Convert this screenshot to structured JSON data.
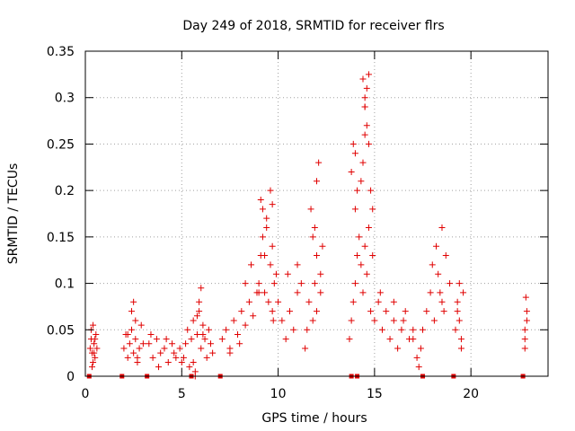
{
  "chart_data": {
    "type": "scatter",
    "title": "Day 249 of 2018, SRMTID for receiver flrs",
    "xlabel": "GPS time / hours",
    "ylabel": "SRMTID / TECUs",
    "xlim": [
      0,
      24
    ],
    "ylim": [
      0,
      0.35
    ],
    "xticks": [
      0,
      5,
      10,
      15,
      20
    ],
    "xtick_labels": [
      "0",
      "5",
      "10",
      "15",
      "20"
    ],
    "yticks": [
      0,
      0.05,
      0.1,
      0.15,
      0.2,
      0.25,
      0.3,
      0.35
    ],
    "ytick_labels": [
      "0",
      "0.05",
      "0.1",
      "0.15",
      "0.2",
      "0.25",
      "0.3",
      "0.35"
    ],
    "grid": true,
    "marker": "+",
    "color": "#e00000",
    "zero_marks_x": [
      0.2,
      1.9,
      3.2,
      5.5,
      7.0,
      13.8,
      14.1,
      17.5,
      19.1,
      22.7
    ],
    "series": [
      {
        "name": "flrs",
        "x": [
          0.25,
          0.3,
          0.35,
          0.4,
          0.45,
          0.5,
          0.55,
          0.6,
          0.3,
          0.4,
          0.5,
          0.35,
          0.45,
          2.0,
          2.1,
          2.2,
          2.3,
          2.4,
          2.5,
          2.6,
          2.7,
          2.8,
          2.9,
          3.0,
          2.5,
          2.6,
          2.4,
          2.2,
          2.7,
          3.3,
          3.5,
          3.7,
          3.9,
          4.1,
          4.3,
          4.5,
          4.7,
          4.9,
          3.4,
          3.8,
          4.2,
          4.6,
          5.0,
          5.1,
          5.2,
          5.3,
          5.4,
          5.5,
          5.6,
          5.7,
          5.8,
          5.9,
          6.0,
          6.1,
          6.2,
          6.3,
          6.4,
          6.5,
          6.6,
          5.9,
          6.0,
          5.6,
          5.7,
          5.8,
          6.1,
          7.1,
          7.3,
          7.5,
          7.7,
          7.9,
          8.1,
          8.3,
          8.5,
          8.7,
          8.9,
          7.5,
          8.0,
          8.3,
          8.6,
          9.0,
          9.1,
          9.2,
          9.3,
          9.4,
          9.5,
          9.6,
          9.7,
          9.8,
          9.9,
          9.1,
          9.2,
          9.4,
          9.6,
          9.7,
          9.7,
          9.75,
          9.3,
          9.0,
          10.0,
          10.2,
          10.4,
          10.6,
          10.8,
          11.0,
          11.2,
          11.4,
          11.6,
          11.8,
          12.0,
          12.2,
          10.5,
          11.0,
          11.5,
          11.8,
          11.9,
          12.0,
          12.1,
          11.7,
          12.0,
          12.2,
          12.3,
          11.9,
          13.7,
          13.8,
          13.9,
          14.0,
          14.1,
          14.2,
          14.3,
          14.4,
          14.5,
          14.6,
          14.7,
          14.8,
          14.9,
          13.8,
          13.9,
          14.0,
          14.0,
          14.1,
          14.3,
          14.4,
          14.5,
          14.5,
          14.6,
          14.6,
          14.7,
          14.7,
          14.8,
          14.9,
          14.5,
          14.4,
          14.5,
          15.0,
          15.2,
          15.4,
          15.6,
          15.8,
          16.0,
          16.2,
          16.4,
          16.6,
          16.8,
          17.0,
          17.2,
          17.4,
          15.3,
          16.0,
          16.5,
          17.0,
          17.3,
          17.5,
          17.7,
          17.9,
          18.1,
          18.3,
          18.5,
          18.7,
          18.9,
          18.0,
          18.2,
          18.4,
          18.5,
          18.6,
          19.2,
          19.3,
          19.4,
          19.5,
          19.6,
          19.3,
          19.5,
          19.4,
          22.8,
          22.8,
          22.9,
          22.9,
          22.85,
          22.8
        ],
        "y": [
          0.03,
          0.04,
          0.025,
          0.055,
          0.035,
          0.02,
          0.045,
          0.03,
          0.05,
          0.015,
          0.04,
          0.01,
          0.025,
          0.03,
          0.045,
          0.02,
          0.035,
          0.05,
          0.025,
          0.04,
          0.015,
          0.03,
          0.055,
          0.035,
          0.08,
          0.06,
          0.07,
          0.045,
          0.02,
          0.035,
          0.02,
          0.04,
          0.025,
          0.03,
          0.015,
          0.035,
          0.02,
          0.03,
          0.045,
          0.01,
          0.04,
          0.025,
          0.015,
          0.02,
          0.035,
          0.05,
          0.01,
          0.04,
          0.06,
          0.005,
          0.045,
          0.07,
          0.03,
          0.055,
          0.04,
          0.02,
          0.05,
          0.035,
          0.025,
          0.08,
          0.095,
          0.015,
          0.0,
          0.065,
          0.045,
          0.04,
          0.05,
          0.03,
          0.06,
          0.045,
          0.07,
          0.055,
          0.08,
          0.065,
          0.09,
          0.025,
          0.035,
          0.1,
          0.12,
          0.1,
          0.13,
          0.15,
          0.09,
          0.17,
          0.08,
          0.12,
          0.14,
          0.1,
          0.11,
          0.19,
          0.18,
          0.16,
          0.2,
          0.185,
          0.07,
          0.06,
          0.13,
          0.09,
          0.08,
          0.06,
          0.04,
          0.07,
          0.05,
          0.09,
          0.1,
          0.03,
          0.08,
          0.06,
          0.07,
          0.09,
          0.11,
          0.12,
          0.05,
          0.15,
          0.16,
          0.21,
          0.23,
          0.18,
          0.13,
          0.11,
          0.14,
          0.1,
          0.04,
          0.06,
          0.08,
          0.1,
          0.13,
          0.15,
          0.12,
          0.09,
          0.14,
          0.11,
          0.16,
          0.07,
          0.13,
          0.22,
          0.25,
          0.24,
          0.18,
          0.2,
          0.21,
          0.23,
          0.26,
          0.29,
          0.31,
          0.27,
          0.325,
          0.25,
          0.2,
          0.18,
          0.3,
          0.32,
          0.29,
          0.06,
          0.08,
          0.05,
          0.07,
          0.04,
          0.06,
          0.03,
          0.05,
          0.07,
          0.04,
          0.05,
          0.02,
          0.03,
          0.09,
          0.08,
          0.06,
          0.04,
          0.01,
          0.05,
          0.07,
          0.09,
          0.06,
          0.11,
          0.08,
          0.13,
          0.1,
          0.12,
          0.14,
          0.09,
          0.16,
          0.07,
          0.05,
          0.08,
          0.06,
          0.04,
          0.09,
          0.07,
          0.03,
          0.1,
          0.03,
          0.04,
          0.06,
          0.07,
          0.085,
          0.05
        ]
      }
    ]
  }
}
